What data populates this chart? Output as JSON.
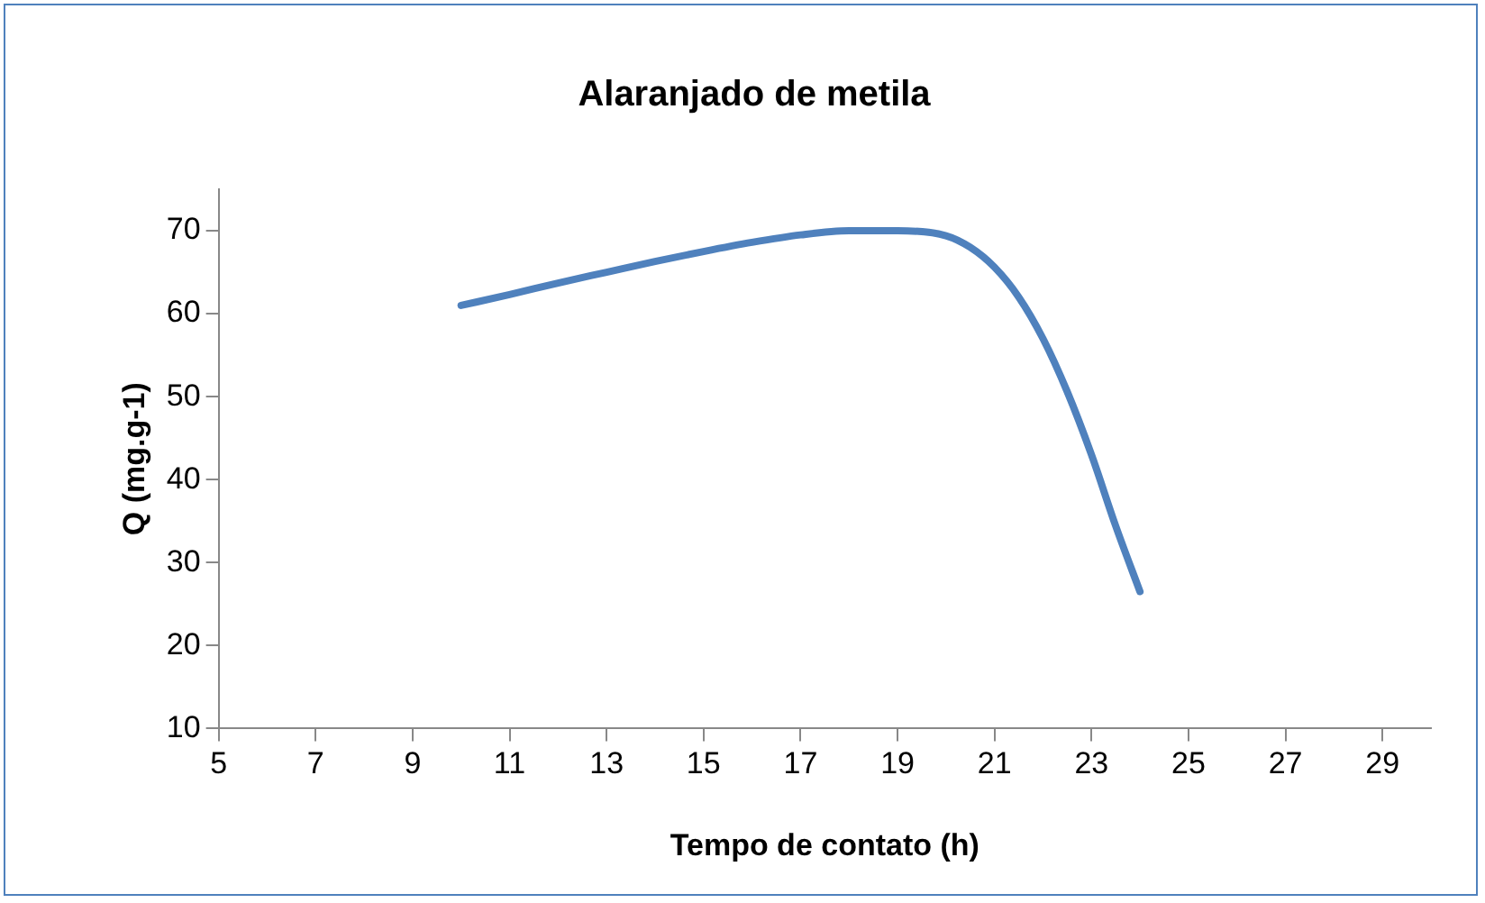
{
  "chart_data": {
    "type": "line",
    "title": "Alaranjado de metila",
    "xlabel": "Tempo de contato (h)",
    "ylabel": "Q (mg.g-1)",
    "x": [
      10,
      11,
      12,
      13,
      14,
      15,
      16,
      17,
      18,
      19,
      20,
      20.5,
      21,
      21.5,
      22,
      22.5,
      23,
      23.5,
      24
    ],
    "series": [
      {
        "color": "#4f81bd",
        "values": [
          61,
          62.3,
          63.7,
          65,
          66.3,
          67.5,
          68.6,
          69.5,
          70,
          70,
          69.4,
          68,
          65.6,
          62,
          57,
          50.6,
          43,
          34.4,
          26.5
        ]
      }
    ],
    "xlim": [
      5,
      30
    ],
    "xticks": [
      5,
      7,
      9,
      11,
      13,
      15,
      17,
      19,
      21,
      23,
      25,
      27,
      29
    ],
    "ylim": [
      10,
      75
    ],
    "yticks": [
      10,
      20,
      30,
      40,
      50,
      60,
      70
    ],
    "grid": false,
    "legend": false,
    "marker": "none",
    "line_style": "solid"
  }
}
